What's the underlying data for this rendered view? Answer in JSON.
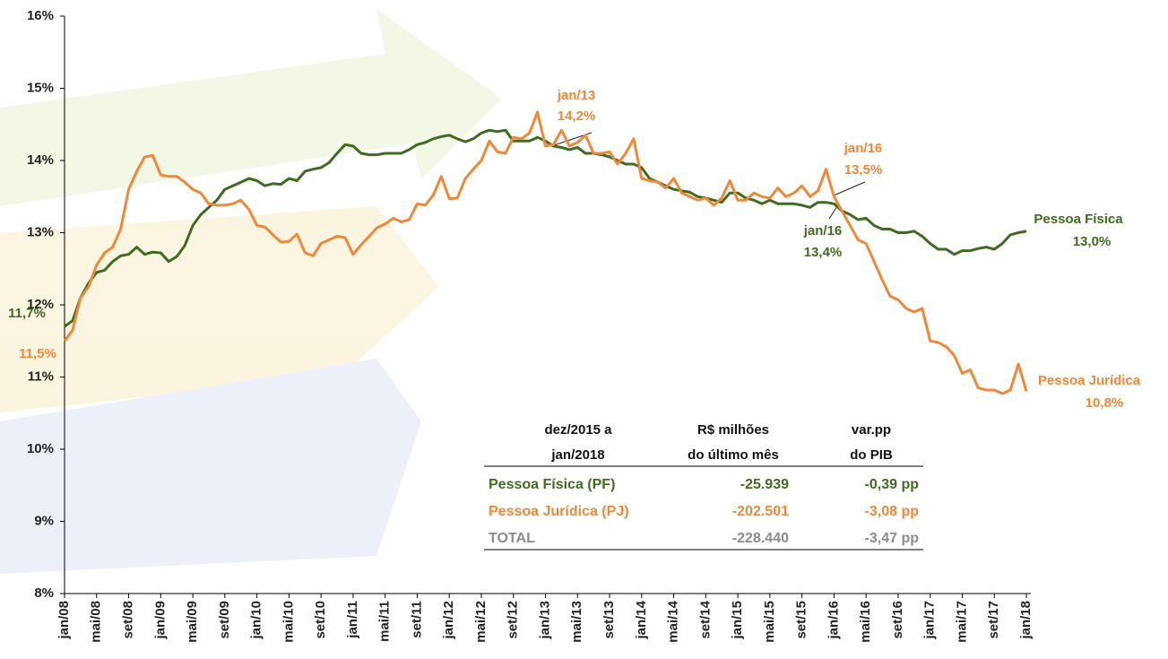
{
  "chart_data": {
    "type": "line",
    "categories": [
      "jan/08",
      null,
      null,
      null,
      "mai/08",
      null,
      null,
      null,
      "set/08",
      null,
      null,
      null,
      "jan/09",
      null,
      null,
      null,
      "mai/09",
      null,
      null,
      null,
      "set/09",
      null,
      null,
      null,
      "jan/10",
      null,
      null,
      null,
      "mai/10",
      null,
      null,
      null,
      "set/10",
      null,
      null,
      null,
      "jan/11",
      null,
      null,
      null,
      "mai/11",
      null,
      null,
      null,
      "set/11",
      null,
      null,
      null,
      "jan/12",
      null,
      null,
      null,
      "mai/12",
      null,
      null,
      null,
      "set/12",
      null,
      null,
      null,
      "jan/13",
      null,
      null,
      null,
      "mai/13",
      null,
      null,
      null,
      "set/13",
      null,
      null,
      null,
      "jan/14",
      null,
      null,
      null,
      "mai/14",
      null,
      null,
      null,
      "set/14",
      null,
      null,
      null,
      "jan/15",
      null,
      null,
      null,
      "mai/15",
      null,
      null,
      null,
      "set/15",
      null,
      null,
      null,
      "jan/16",
      null,
      null,
      null,
      "mai/16",
      null,
      null,
      null,
      "set/16",
      null,
      null,
      null,
      "jan/17",
      null,
      null,
      null,
      "mai/17",
      null,
      null,
      null,
      "set/17",
      null,
      null,
      null,
      "jan/18"
    ],
    "series": [
      {
        "name": "Pessoa Física",
        "color": "#3f6b22",
        "values": [
          11.7,
          11.78,
          12.1,
          12.3,
          12.45,
          12.48,
          12.6,
          12.68,
          12.7,
          12.8,
          12.7,
          12.73,
          12.72,
          12.6,
          12.67,
          12.82,
          13.1,
          13.25,
          13.35,
          13.45,
          13.6,
          13.65,
          13.7,
          13.75,
          13.72,
          13.65,
          13.68,
          13.67,
          13.75,
          13.72,
          13.85,
          13.88,
          13.9,
          13.97,
          14.1,
          14.22,
          14.2,
          14.1,
          14.08,
          14.08,
          14.1,
          14.1,
          14.1,
          14.15,
          14.22,
          14.25,
          14.3,
          14.33,
          14.35,
          14.3,
          14.26,
          14.3,
          14.38,
          14.42,
          14.4,
          14.42,
          14.27,
          14.27,
          14.27,
          14.32,
          14.27,
          14.2,
          14.18,
          14.15,
          14.18,
          14.1,
          14.1,
          14.08,
          14.05,
          14.0,
          13.95,
          13.95,
          13.9,
          13.75,
          13.7,
          13.65,
          13.6,
          13.58,
          13.56,
          13.5,
          13.48,
          13.45,
          13.42,
          13.55,
          13.55,
          13.48,
          13.45,
          13.4,
          13.45,
          13.4,
          13.4,
          13.4,
          13.38,
          13.35,
          13.42,
          13.42,
          13.4,
          13.3,
          13.25,
          13.18,
          13.2,
          13.1,
          13.05,
          13.05,
          13.0,
          13.0,
          13.02,
          12.95,
          12.85,
          12.77,
          12.77,
          12.7,
          12.75,
          12.75,
          12.78,
          12.8,
          12.77,
          12.85,
          12.97,
          13.0,
          13.02
        ]
      },
      {
        "name": "Pessoa Jurídica",
        "color": "#f0883a",
        "values": [
          11.5,
          11.65,
          12.1,
          12.25,
          12.55,
          12.72,
          12.8,
          13.05,
          13.6,
          13.85,
          14.05,
          14.07,
          13.8,
          13.78,
          13.78,
          13.7,
          13.6,
          13.55,
          13.4,
          13.38,
          13.38,
          13.4,
          13.45,
          13.32,
          13.1,
          13.08,
          12.97,
          12.87,
          12.88,
          12.98,
          12.72,
          12.68,
          12.85,
          12.9,
          12.95,
          12.93,
          12.7,
          12.83,
          12.95,
          13.07,
          13.12,
          13.2,
          13.15,
          13.18,
          13.4,
          13.38,
          13.52,
          13.78,
          13.47,
          13.48,
          13.75,
          13.88,
          14.0,
          14.27,
          14.12,
          14.1,
          14.32,
          14.3,
          14.38,
          14.67,
          14.2,
          14.22,
          14.42,
          14.2,
          14.25,
          14.35,
          14.1,
          14.1,
          14.12,
          13.95,
          14.1,
          14.3,
          13.75,
          13.72,
          13.7,
          13.62,
          13.75,
          13.55,
          13.5,
          13.45,
          13.48,
          13.38,
          13.48,
          13.72,
          13.45,
          13.45,
          13.55,
          13.5,
          13.48,
          13.62,
          13.5,
          13.55,
          13.65,
          13.5,
          13.58,
          13.88,
          13.5,
          13.3,
          13.1,
          12.9,
          12.85,
          12.6,
          12.35,
          12.12,
          12.07,
          11.95,
          11.9,
          11.95,
          11.5,
          11.48,
          11.42,
          11.3,
          11.05,
          11.1,
          10.85,
          10.82,
          10.82,
          10.77,
          10.82,
          11.18,
          10.8
        ]
      }
    ],
    "ylim": [
      8,
      16
    ],
    "yticks": [
      {
        "value": 8,
        "label": "8%"
      },
      {
        "value": 9,
        "label": "9%"
      },
      {
        "value": 10,
        "label": "10%"
      },
      {
        "value": 11,
        "label": "11%"
      },
      {
        "value": 12,
        "label": "12%"
      },
      {
        "value": 13,
        "label": "13%"
      },
      {
        "value": 14,
        "label": "14%"
      },
      {
        "value": 15,
        "label": "15%"
      },
      {
        "value": 16,
        "label": "16%"
      }
    ],
    "annotations": [
      "jan/13",
      "14,2%",
      "jan/16",
      "13,5%",
      "jan/16",
      "13,4%",
      "11,7%",
      "11,5%",
      "13,0%",
      "10,8%"
    ]
  },
  "table": {
    "header": [
      [
        "dez/2015 a",
        "jan/2018"
      ],
      [
        "R$ milhões",
        "do último mês"
      ],
      [
        "var.pp",
        "do PIB"
      ]
    ],
    "rows": [
      [
        "Pessoa Física (PF)",
        "-25.939",
        "-0,39 pp"
      ],
      [
        "Pessoa Jurídica (PJ)",
        "-202.501",
        "-3,08 pp"
      ],
      [
        "TOTAL",
        "-228.440",
        "-3,47 pp"
      ]
    ]
  }
}
